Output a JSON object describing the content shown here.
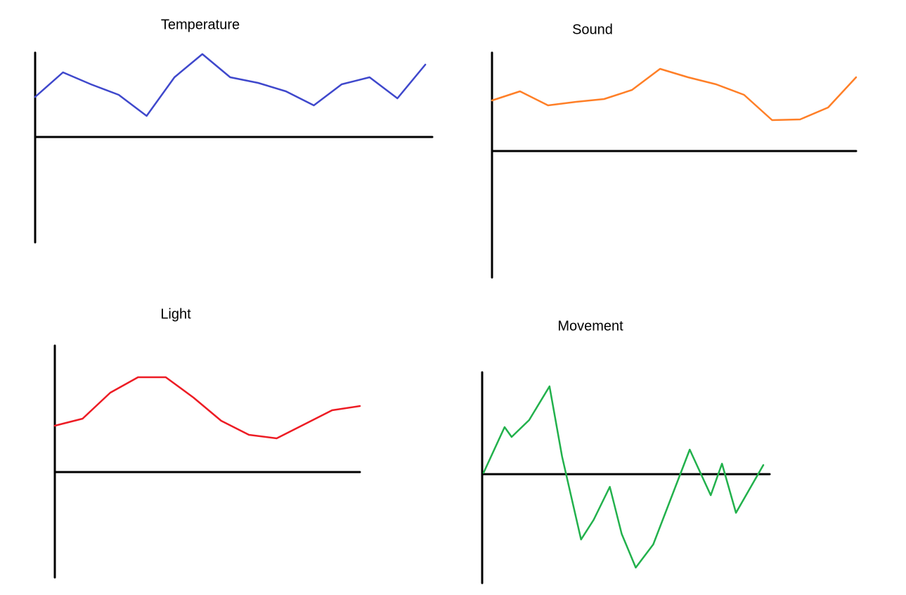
{
  "chart_data": [
    {
      "type": "line",
      "title": "Temperature",
      "color": "#3f48cc",
      "x": [
        0,
        4,
        8,
        12,
        16,
        20,
        24,
        28,
        32,
        36,
        40,
        44,
        48,
        52,
        56
      ],
      "values": [
        5.7,
        9.2,
        7.5,
        6,
        3,
        8.5,
        11.8,
        8.5,
        7.7,
        6.5,
        4.5,
        7.5,
        8.5,
        5.5,
        10.3
      ],
      "xlim": [
        0,
        57
      ],
      "ylim": [
        -15,
        12
      ]
    },
    {
      "type": "line",
      "title": "Sound",
      "color": "#ff7f27",
      "x": [
        0,
        4,
        8,
        12,
        16,
        20,
        24,
        28,
        32,
        36,
        40,
        44,
        48,
        52
      ],
      "values": [
        7.2,
        8.5,
        6.5,
        7,
        7.4,
        8.7,
        11.7,
        10.5,
        9.5,
        8,
        4.4,
        4.5,
        6.2,
        10.5
      ],
      "xlim": [
        0,
        52
      ],
      "ylim": [
        -18,
        14
      ]
    },
    {
      "type": "line",
      "title": "Light",
      "color": "#ed1c24",
      "x": [
        0,
        4,
        8,
        12,
        16,
        20,
        24,
        28,
        32,
        36,
        40,
        44
      ],
      "values": [
        6.6,
        7.6,
        11.3,
        13.5,
        13.5,
        10.6,
        7.3,
        5.3,
        4.8,
        6.8,
        8.8,
        9.4
      ],
      "xlim": [
        0,
        44
      ],
      "ylim": [
        -15,
        18
      ]
    },
    {
      "type": "line",
      "title": "Movement",
      "color": "#22b14c",
      "x": [
        0.2,
        3.2,
        4.2,
        6.7,
        9.6,
        11.4,
        14.1,
        15.9,
        18.2,
        19.9,
        21.9,
        24.4,
        29.6,
        32.6,
        34.2,
        36.2,
        40.1
      ],
      "values": [
        0.2,
        6.7,
        5.3,
        7.7,
        12.5,
        2.5,
        -9.3,
        -6.5,
        -1.8,
        -8.5,
        -13.3,
        -10,
        3.5,
        -3,
        1.5,
        -5.5,
        1.3
      ],
      "xlim": [
        0,
        41
      ],
      "ylim": [
        -15.5,
        14.5
      ]
    }
  ]
}
